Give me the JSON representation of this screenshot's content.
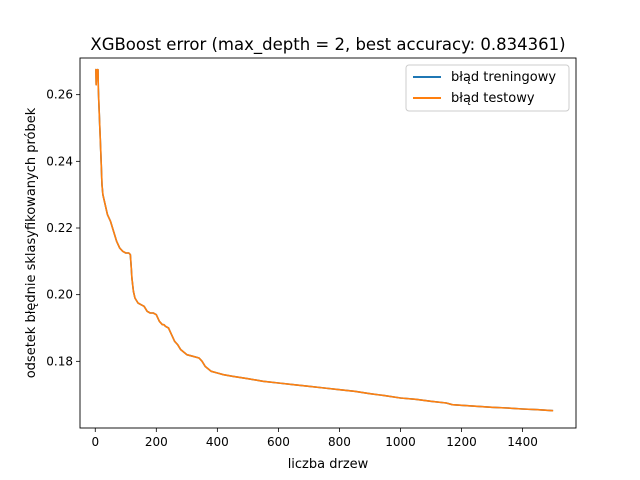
{
  "chart_data": {
    "type": "line",
    "title": "XGBoost error (max_depth = 2, best accuracy: 0.834361)",
    "xlabel": "liczba drzew",
    "ylabel": "odsetek błędnie sklasyfikowanych próbek",
    "xlim": [
      -50,
      1575
    ],
    "ylim": [
      0.16,
      0.271
    ],
    "xticks": [
      0,
      200,
      400,
      600,
      800,
      1000,
      1200,
      1400
    ],
    "yticks": [
      0.18,
      0.2,
      0.22,
      0.24,
      0.26
    ],
    "ytick_labels": [
      "0.18",
      "0.20",
      "0.22",
      "0.24",
      "0.26"
    ],
    "grid": false,
    "legend_position": "top-right",
    "series": [
      {
        "name": "błąd treningowy",
        "color": "#1f77b4",
        "x": [
          0,
          2,
          3,
          5,
          7,
          9,
          10,
          12,
          15,
          18,
          20,
          22,
          25,
          30,
          40,
          50,
          60,
          70,
          80,
          90,
          100,
          110,
          115,
          118,
          120,
          125,
          130,
          140,
          150,
          160,
          170,
          180,
          190,
          200,
          210,
          220,
          225,
          230,
          240,
          250,
          260,
          265,
          270,
          280,
          300,
          320,
          340,
          350,
          360,
          380,
          400,
          420,
          450,
          500,
          550,
          600,
          650,
          700,
          750,
          800,
          850,
          900,
          950,
          1000,
          1050,
          1100,
          1150,
          1170,
          1200,
          1250,
          1300,
          1350,
          1400,
          1450,
          1500
        ],
        "y": [
          0.2675,
          0.2675,
          0.263,
          0.2675,
          0.2675,
          0.2675,
          0.262,
          0.257,
          0.25,
          0.243,
          0.238,
          0.233,
          0.23,
          0.228,
          0.224,
          0.222,
          0.219,
          0.216,
          0.214,
          0.213,
          0.2125,
          0.2125,
          0.212,
          0.208,
          0.205,
          0.201,
          0.199,
          0.1975,
          0.197,
          0.1965,
          0.195,
          0.1945,
          0.1945,
          0.194,
          0.192,
          0.191,
          0.191,
          0.1905,
          0.19,
          0.188,
          0.186,
          0.1855,
          0.185,
          0.1835,
          0.182,
          0.1815,
          0.181,
          0.18,
          0.1785,
          0.177,
          0.1765,
          0.176,
          0.1755,
          0.1748,
          0.174,
          0.1735,
          0.173,
          0.1725,
          0.172,
          0.1715,
          0.171,
          0.1703,
          0.1697,
          0.169,
          0.1686,
          0.168,
          0.1675,
          0.167,
          0.1668,
          0.1665,
          0.1662,
          0.166,
          0.1657,
          0.1655,
          0.1652
        ]
      },
      {
        "name": "błąd testowy",
        "color": "#ff7f0e",
        "x": [
          0,
          2,
          3,
          5,
          7,
          9,
          10,
          12,
          15,
          18,
          20,
          22,
          25,
          30,
          40,
          50,
          60,
          70,
          80,
          90,
          100,
          110,
          115,
          118,
          120,
          125,
          130,
          140,
          150,
          160,
          170,
          180,
          190,
          200,
          210,
          220,
          225,
          230,
          240,
          250,
          260,
          265,
          270,
          280,
          300,
          320,
          340,
          350,
          360,
          380,
          400,
          420,
          450,
          500,
          550,
          600,
          650,
          700,
          750,
          800,
          850,
          900,
          950,
          1000,
          1050,
          1100,
          1150,
          1170,
          1200,
          1250,
          1300,
          1350,
          1400,
          1450,
          1500
        ],
        "y": [
          0.2675,
          0.2675,
          0.263,
          0.2675,
          0.2675,
          0.2675,
          0.262,
          0.257,
          0.25,
          0.243,
          0.238,
          0.233,
          0.23,
          0.228,
          0.224,
          0.222,
          0.219,
          0.216,
          0.214,
          0.213,
          0.2125,
          0.2125,
          0.212,
          0.208,
          0.205,
          0.201,
          0.199,
          0.1975,
          0.197,
          0.1965,
          0.195,
          0.1945,
          0.1945,
          0.194,
          0.192,
          0.191,
          0.191,
          0.1905,
          0.19,
          0.188,
          0.186,
          0.1855,
          0.185,
          0.1835,
          0.182,
          0.1815,
          0.181,
          0.18,
          0.1785,
          0.177,
          0.1765,
          0.176,
          0.1755,
          0.1748,
          0.174,
          0.1735,
          0.173,
          0.1725,
          0.172,
          0.1715,
          0.171,
          0.1703,
          0.1697,
          0.169,
          0.1686,
          0.168,
          0.1675,
          0.167,
          0.1668,
          0.1665,
          0.1662,
          0.166,
          0.1657,
          0.1655,
          0.1652
        ]
      }
    ]
  }
}
